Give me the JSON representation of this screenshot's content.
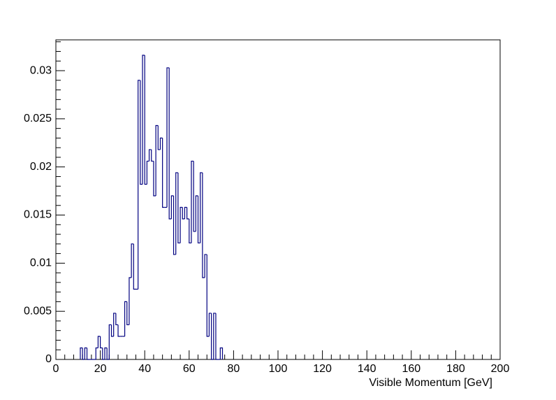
{
  "chart_data": {
    "type": "histogram",
    "x_label": "Visible Momentum [GeV]",
    "bins": [
      11,
      12,
      13,
      14,
      15,
      16,
      17,
      18,
      19,
      20,
      21,
      22,
      23,
      24,
      25,
      26,
      27,
      28,
      29,
      30,
      31,
      32,
      33,
      34,
      35,
      36,
      37,
      38,
      39,
      40,
      41,
      42,
      43,
      44,
      45,
      46,
      47,
      48,
      49,
      50,
      51,
      52,
      53,
      54,
      55,
      56,
      57,
      58,
      59,
      60,
      61,
      62,
      63,
      64,
      65,
      66,
      67,
      68,
      69,
      70,
      71,
      72,
      73,
      74,
      75
    ],
    "values": [
      0.0012,
      0,
      0.0012,
      0,
      0,
      0,
      0,
      0.0012,
      0.0024,
      0.0012,
      0,
      0.0012,
      0,
      0.0036,
      0.0024,
      0.0048,
      0.0036,
      0.0024,
      0.0024,
      0.0024,
      0.006,
      0.0036,
      0.0085,
      0.012,
      0.0073,
      0.0073,
      0.029,
      0.0182,
      0.0316,
      0.0182,
      0.0206,
      0.0218,
      0.0206,
      0.017,
      0.0243,
      0.0218,
      0.023,
      0.0158,
      0.0158,
      0.0303,
      0.0146,
      0.017,
      0.0109,
      0.0194,
      0.0121,
      0.0158,
      0.0146,
      0.0158,
      0.0146,
      0.0121,
      0.0206,
      0.0133,
      0.017,
      0.0121,
      0.0194,
      0.0085,
      0.0109,
      0.0024,
      0.0048,
      0,
      0.0048,
      0,
      0,
      0.0012
    ],
    "color": "#000080",
    "xlim": [
      0,
      200
    ],
    "xticks": [
      0,
      20,
      40,
      60,
      80,
      100,
      120,
      140,
      160,
      180,
      200
    ],
    "ylim": [
      0,
      0.0332
    ],
    "yticks": [
      0,
      0.005,
      0.01,
      0.015,
      0.02,
      0.025,
      0.03
    ]
  }
}
